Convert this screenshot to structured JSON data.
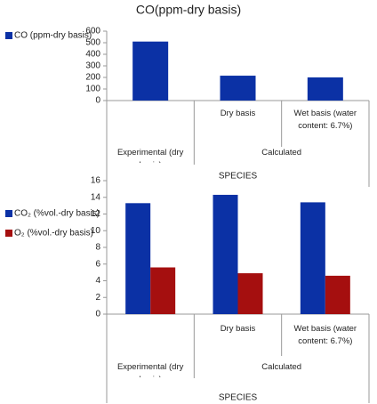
{
  "chart_data": [
    {
      "type": "bar",
      "title": "CO(ppm-dry basis)",
      "x_label": "SPECIES",
      "categories": [
        null,
        "Dry basis",
        "Wet basis (water content: 6.7%)"
      ],
      "groups": [
        {
          "label": "Experimental (dry basis)",
          "count": 1
        },
        {
          "label": "Calculated",
          "count": 2
        }
      ],
      "series": [
        {
          "name": "CO (ppm-dry basis)",
          "color": "#0b31a5",
          "values": [
            510,
            215,
            200
          ]
        }
      ],
      "ylim": [
        0,
        600
      ],
      "yticks": [
        0,
        100,
        200,
        300,
        400,
        500,
        600
      ],
      "grid": false,
      "legend": "left"
    },
    {
      "type": "bar",
      "x_label": "SPECIES",
      "categories": [
        null,
        "Dry basis",
        "Wet basis (water content: 6.7%)"
      ],
      "groups": [
        {
          "label": "Experimental (dry basis)",
          "count": 1
        },
        {
          "label": "Calculated",
          "count": 2
        }
      ],
      "series": [
        {
          "name": "CO₂ (%vol.-dry basis)",
          "color": "#0b31a5",
          "values": [
            13.3,
            14.3,
            13.4
          ]
        },
        {
          "name": "O₂ (%vol.-dry basis)",
          "color": "#a50f0f",
          "values": [
            5.6,
            4.9,
            4.6
          ]
        }
      ],
      "ylim": [
        0,
        16
      ],
      "yticks": [
        0,
        2,
        4,
        6,
        8,
        10,
        12,
        14,
        16
      ],
      "grid": false,
      "legend": "left"
    }
  ]
}
